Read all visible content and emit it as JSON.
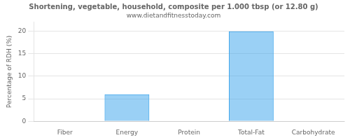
{
  "chart_data": {
    "type": "bar",
    "title": "Shortening, vegetable, household, composite per 1.000 tbsp (or 12.80 g)",
    "subtitle": "www.dietandfitnesstoday.com",
    "ylabel": "Percentage of RDH (%)",
    "categories": [
      "Fiber",
      "Energy",
      "Protein",
      "Total-Fat",
      "Carbohydrate"
    ],
    "values": [
      0,
      6,
      0,
      20,
      0
    ],
    "ylim": [
      0,
      22
    ],
    "yticks": [
      0,
      5,
      10,
      15,
      20
    ],
    "grid": true
  }
}
